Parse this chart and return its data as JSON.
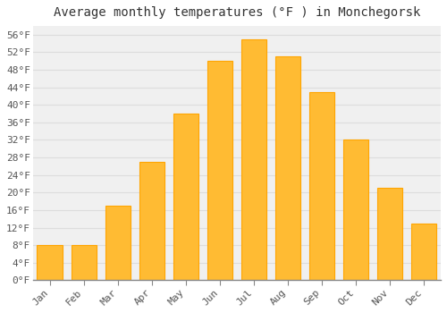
{
  "title": "Average monthly temperatures (°F ) in Monchegorsk",
  "months": [
    "Jan",
    "Feb",
    "Mar",
    "Apr",
    "May",
    "Jun",
    "Jul",
    "Aug",
    "Sep",
    "Oct",
    "Nov",
    "Dec"
  ],
  "values": [
    8,
    8,
    17,
    27,
    38,
    50,
    55,
    51,
    43,
    32,
    21,
    13
  ],
  "bar_color": "#FFBB33",
  "bar_edge_color": "#FFA500",
  "background_color": "#FFFFFF",
  "plot_bg_color": "#F0F0F0",
  "grid_color": "#DDDDDD",
  "yticks": [
    0,
    4,
    8,
    12,
    16,
    20,
    24,
    28,
    32,
    36,
    40,
    44,
    48,
    52,
    56
  ],
  "ylim": [
    0,
    58
  ],
  "title_fontsize": 10,
  "tick_fontsize": 8,
  "font_family": "monospace"
}
